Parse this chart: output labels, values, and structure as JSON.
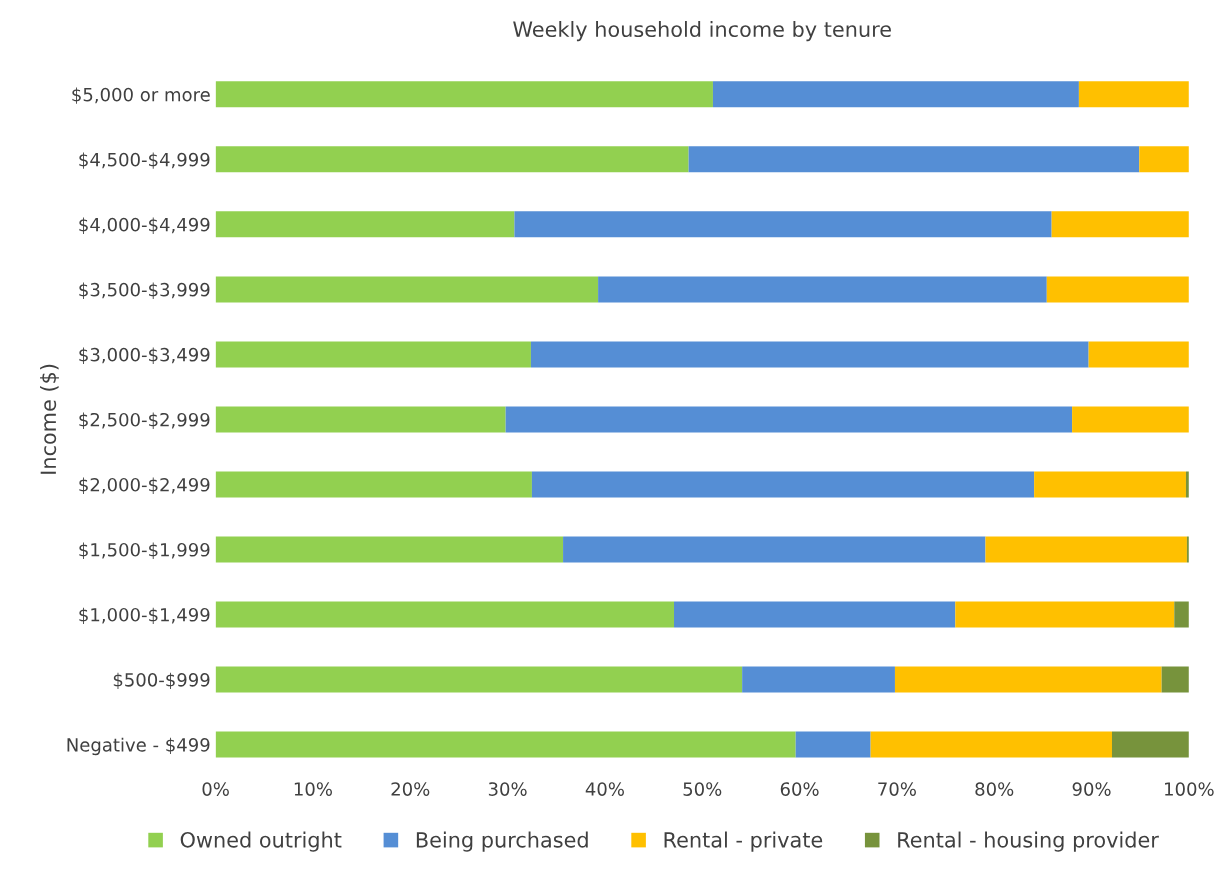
{
  "chart_data": {
    "type": "bar",
    "orientation": "horizontal",
    "stacked": true,
    "title": "Weekly household income by tenure",
    "ylabel": "Income ($)",
    "categories": [
      "$5,000 or more",
      "$4,500-$4,999",
      "$4,000-$4,499",
      "$3,500-$3,999",
      "$3,000-$3,499",
      "$2,500-$2,999",
      "$2,000-$2,499",
      "$1,500-$1,999",
      "$1,000-$1,499",
      "$500-$999",
      "Negative - $499"
    ],
    "series": [
      {
        "name": "Owned outright",
        "color": "#92d050",
        "values": [
          51.1,
          48.6,
          30.7,
          39.3,
          32.4,
          29.8,
          32.5,
          35.7,
          47.1,
          54.1,
          59.6
        ]
      },
      {
        "name": "Being purchased",
        "color": "#558ed5",
        "values": [
          37.6,
          46.3,
          55.2,
          46.1,
          57.3,
          58.2,
          51.6,
          43.4,
          28.9,
          15.7,
          7.7
        ]
      },
      {
        "name": "Rental - private",
        "color": "#ffc000",
        "values": [
          11.3,
          5.1,
          14.1,
          14.6,
          10.3,
          12.0,
          15.6,
          20.7,
          22.5,
          27.4,
          24.8
        ]
      },
      {
        "name": "Rental - housing provider",
        "color": "#77933c",
        "values": [
          null,
          null,
          null,
          null,
          null,
          null,
          0.3,
          0.2,
          1.5,
          2.8,
          7.9
        ]
      }
    ],
    "xlim": [
      0,
      100
    ],
    "xticks": [
      {
        "value": 0,
        "label": "0%"
      },
      {
        "value": 10,
        "label": "10%"
      },
      {
        "value": 20,
        "label": "20%"
      },
      {
        "value": 30,
        "label": "30%"
      },
      {
        "value": 40,
        "label": "40%"
      },
      {
        "value": 50,
        "label": "50%"
      },
      {
        "value": 60,
        "label": "60%"
      },
      {
        "value": 70,
        "label": "70%"
      },
      {
        "value": 80,
        "label": "80%"
      },
      {
        "value": 90,
        "label": "90%"
      },
      {
        "value": 100,
        "label": "100%"
      }
    ],
    "grid": false,
    "legend": "bottom"
  }
}
